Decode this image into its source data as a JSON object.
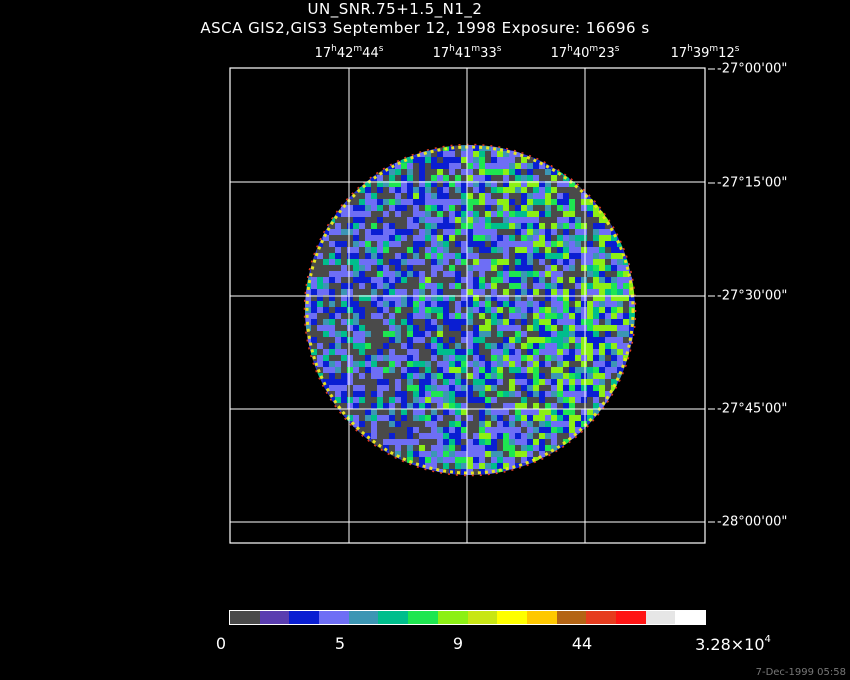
{
  "title": "UN_SNR.75+1.5_N1_2",
  "subtitle": "ASCA GIS2,GIS3 September 12, 1998 Exposure: 16696 s",
  "ra_labels": [
    {
      "h": "17",
      "m": "42",
      "s": "44"
    },
    {
      "h": "17",
      "m": "41",
      "s": "33"
    },
    {
      "h": "17",
      "m": "40",
      "s": "23"
    },
    {
      "h": "17",
      "m": "39",
      "s": "12"
    }
  ],
  "dec_labels": [
    "-27°00'00\"",
    "-27°15'00\"",
    "-27°30'00\"",
    "-27°45'00\"",
    "-28°00'00\""
  ],
  "colorbar": {
    "colors": [
      "#4a4a4a",
      "#5a3db0",
      "#0a1ed2",
      "#6e6ef5",
      "#3c96b4",
      "#00be8c",
      "#1ee650",
      "#8cf014",
      "#c8e614",
      "#ffff00",
      "#ffc800",
      "#b46414",
      "#e63c1e",
      "#ff1414",
      "#e6e6e6",
      "#ffffff"
    ],
    "tick_labels": [
      "0",
      "5",
      "9",
      "44"
    ],
    "max_label": "3.28×10",
    "max_exp": "4"
  },
  "timestamp": "7-Dec-1999 05:58"
}
